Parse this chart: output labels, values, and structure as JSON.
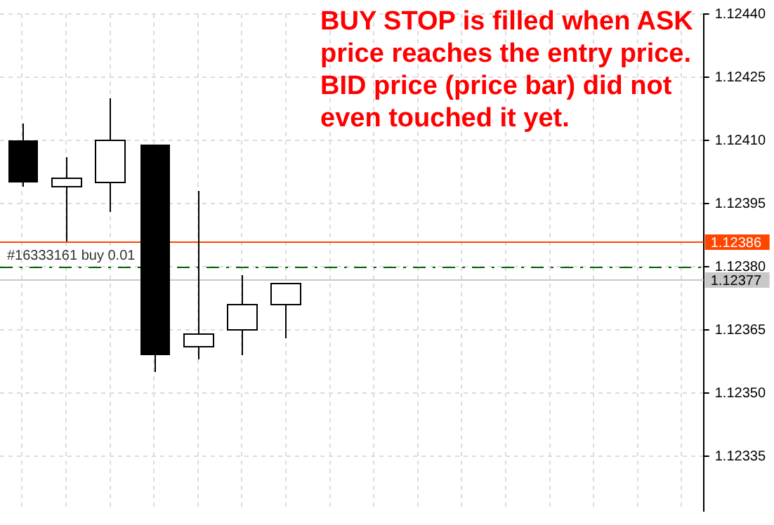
{
  "chart_data": {
    "type": "candlestick",
    "categories": [
      null,
      null,
      null,
      null,
      null,
      null,
      null,
      null,
      null,
      null,
      null,
      null,
      null,
      null,
      null,
      null
    ],
    "ohlc": [
      [
        1.1241,
        1.12414,
        1.12399,
        1.124
      ],
      [
        1.12399,
        1.12406,
        1.12386,
        1.12401
      ],
      [
        1.124,
        1.1242,
        1.12393,
        1.1241
      ],
      [
        1.12409,
        1.12409,
        1.12355,
        1.12359
      ],
      [
        1.12361,
        1.12398,
        1.12358,
        1.12364
      ],
      [
        1.12365,
        1.12378,
        1.12359,
        1.12371
      ],
      [
        1.12371,
        1.12376,
        1.12363,
        1.12376
      ],
      null,
      null,
      null,
      null,
      null,
      null,
      null,
      null,
      null
    ],
    "ylim": [
      1.12322,
      1.1244
    ],
    "yticks": [
      {
        "value": 1.12335,
        "label": "1.12335"
      },
      {
        "value": 1.1235,
        "label": "1.12350"
      },
      {
        "value": 1.12365,
        "label": "1.12365"
      },
      {
        "value": 1.1238,
        "label": "1.12380"
      },
      {
        "value": 1.12395,
        "label": "1.12395"
      },
      {
        "value": 1.1241,
        "label": "1.12410"
      },
      {
        "value": 1.12425,
        "label": "1.12425"
      },
      {
        "value": 1.1244,
        "label": "1.12440"
      }
    ],
    "ref_lines": [
      {
        "axis": "y",
        "value": 1.12386,
        "label": "1.12386",
        "color": "#ff4500",
        "line_style": "solid"
      },
      {
        "axis": "y",
        "value": 1.1238,
        "label": "#16333161 buy 0.01",
        "color": "#006400",
        "line_style": "dashed"
      },
      {
        "axis": "y",
        "value": 1.12377,
        "label": "1.12377",
        "color": "#c8c8c8",
        "line_style": "solid"
      }
    ],
    "annotations": [
      "BUY STOP is filled when ASK price reaches the entry price.",
      "BID price (price bar) did not even touched it yet."
    ],
    "tick_labels": "y",
    "grid": true,
    "legend": false
  }
}
